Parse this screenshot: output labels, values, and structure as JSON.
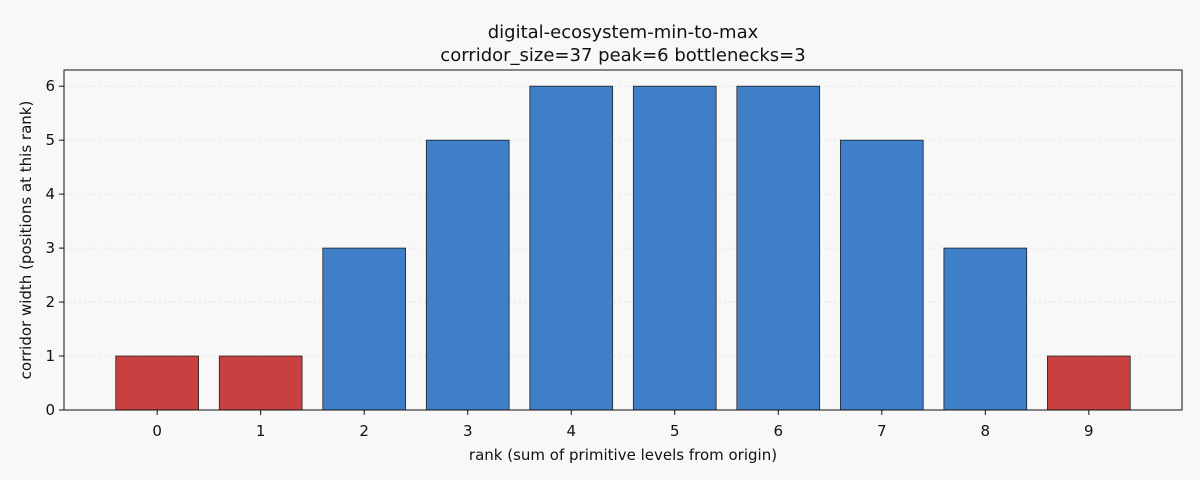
{
  "chart_data": {
    "type": "bar",
    "title": "digital-ecosystem-min-to-max",
    "subtitle": "corridor_size=37  peak=6  bottlenecks=3",
    "xlabel": "rank (sum of primitive levels from origin)",
    "ylabel": "corridor width (positions at this rank)",
    "categories": [
      "0",
      "1",
      "2",
      "3",
      "4",
      "5",
      "6",
      "7",
      "8",
      "9"
    ],
    "values": [
      1,
      1,
      3,
      5,
      6,
      6,
      6,
      5,
      3,
      1
    ],
    "bottleneck": [
      true,
      true,
      false,
      false,
      false,
      false,
      false,
      false,
      false,
      true
    ],
    "ylim": [
      0,
      6.3
    ],
    "yticks": [
      0,
      1,
      2,
      3,
      4,
      5,
      6
    ],
    "grid": "horizontal-dotted",
    "colors": {
      "normal": "#3f7fc8",
      "bottleneck": "#c84040",
      "edge": "#222222",
      "grid": "#dddddd"
    }
  }
}
